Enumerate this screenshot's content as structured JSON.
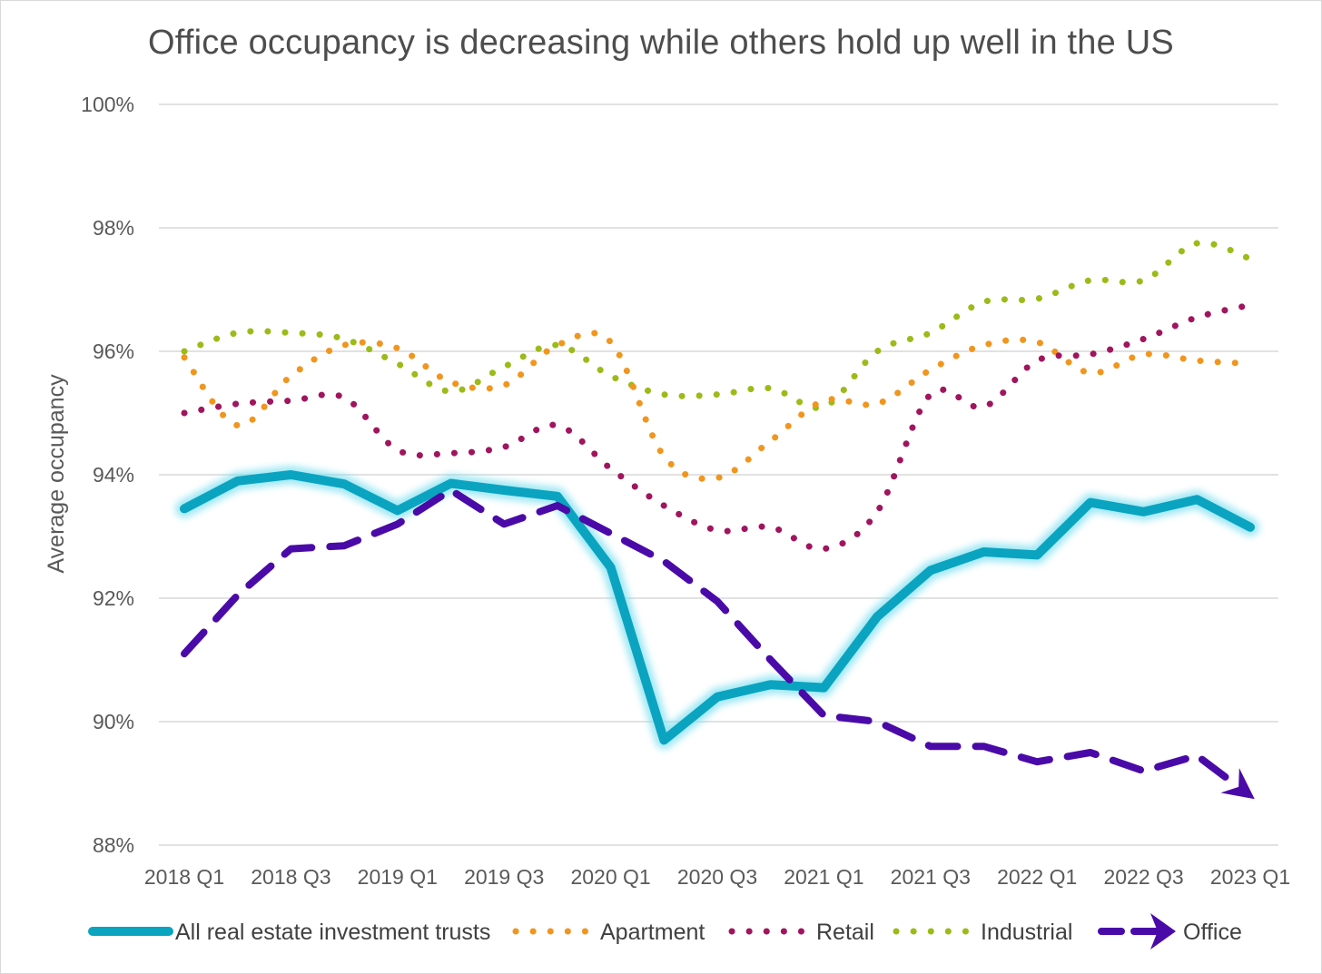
{
  "chart_data": {
    "type": "line",
    "title": "Office occupancy is decreasing while others hold up well in the US",
    "xlabel": "",
    "ylabel": "Average occupancy",
    "ylim": [
      88,
      100
    ],
    "y_ticks": [
      88,
      90,
      92,
      94,
      96,
      98,
      100
    ],
    "y_tick_labels": [
      "88%",
      "90%",
      "92%",
      "94%",
      "96%",
      "98%",
      "100%"
    ],
    "grid": true,
    "legend_position": "bottom",
    "x": [
      "2018 Q1",
      "2018 Q2",
      "2018 Q3",
      "2018 Q4",
      "2019 Q1",
      "2019 Q2",
      "2019 Q3",
      "2019 Q4",
      "2020 Q1",
      "2020 Q2",
      "2020 Q3",
      "2020 Q4",
      "2021 Q1",
      "2021 Q2",
      "2021 Q3",
      "2021 Q4",
      "2022 Q1",
      "2022 Q2",
      "2022 Q3",
      "2022 Q4",
      "2023 Q1"
    ],
    "x_tick_labels": [
      "2018 Q1",
      "2018 Q3",
      "2019 Q1",
      "2019 Q3",
      "2020 Q1",
      "2020 Q3",
      "2021 Q1",
      "2021 Q3",
      "2022 Q1",
      "2022 Q3",
      "2023 Q1"
    ],
    "series": [
      {
        "name": "All real estate investment trusts",
        "style": "solid-glow",
        "color": "#0aa4c0",
        "values": [
          93.45,
          93.9,
          94.0,
          93.85,
          93.42,
          93.86,
          93.75,
          93.65,
          92.5,
          89.7,
          90.4,
          90.6,
          90.55,
          91.7,
          92.45,
          92.75,
          92.7,
          93.55,
          93.4,
          93.6,
          93.15
        ]
      },
      {
        "name": "Apartment",
        "style": "dotted",
        "color": "#f0961e",
        "values": [
          95.9,
          94.8,
          95.6,
          96.1,
          96.05,
          95.5,
          95.45,
          96.1,
          96.15,
          94.3,
          93.95,
          94.55,
          95.2,
          95.15,
          95.7,
          96.1,
          96.15,
          95.65,
          95.95,
          95.85,
          95.8
        ]
      },
      {
        "name": "Retail",
        "style": "dotted",
        "color": "#a0155e",
        "values": [
          95.0,
          95.15,
          95.2,
          95.25,
          94.4,
          94.35,
          94.45,
          94.8,
          94.1,
          93.5,
          93.1,
          93.15,
          92.8,
          93.4,
          95.3,
          95.1,
          95.85,
          95.95,
          96.2,
          96.55,
          96.75
        ]
      },
      {
        "name": "Industrial",
        "style": "dotted",
        "color": "#9bbb19",
        "values": [
          96.0,
          96.3,
          96.3,
          96.2,
          95.8,
          95.35,
          95.75,
          96.1,
          95.6,
          95.3,
          95.3,
          95.4,
          95.1,
          96.0,
          96.3,
          96.8,
          96.85,
          97.15,
          97.15,
          97.75,
          97.5
        ]
      },
      {
        "name": "Office",
        "style": "dashed-arrow",
        "color": "#4a0aa8",
        "values": [
          91.1,
          92.05,
          92.8,
          92.85,
          93.2,
          93.75,
          93.2,
          93.5,
          93.05,
          92.6,
          91.95,
          91.0,
          90.1,
          90.0,
          89.6,
          89.6,
          89.35,
          89.5,
          89.2,
          89.45,
          88.8
        ]
      }
    ]
  }
}
